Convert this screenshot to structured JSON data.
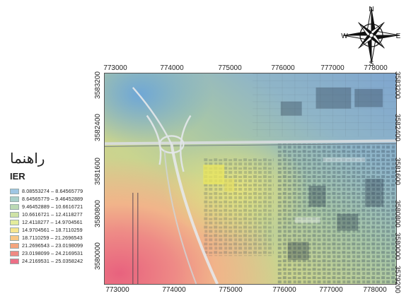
{
  "legend": {
    "title": "راهنما",
    "field": "IER",
    "items": [
      {
        "label": "8.08553274 – 8.64565779",
        "color": "#9fc6e3"
      },
      {
        "label": "8.64565779 – 9.46452889",
        "color": "#a8cfc9"
      },
      {
        "label": "9.46452889 – 10.6616721",
        "color": "#bbd9b4"
      },
      {
        "label": "10.6616721 – 12.4118277",
        "color": "#cfe2a6"
      },
      {
        "label": "12.4118277 – 14.9704561",
        "color": "#e3ec9c"
      },
      {
        "label": "14.9704561 – 18.7110259",
        "color": "#f6e58e"
      },
      {
        "label": "18.7110259 – 21.2696543",
        "color": "#f8c784"
      },
      {
        "label": "21.2696543 – 23.0198099",
        "color": "#f4a57e"
      },
      {
        "label": "23.0198099 – 24.2169531",
        "color": "#ef8a83"
      },
      {
        "label": "24.2169531 – 25.0358242",
        "color": "#ec6f86"
      }
    ]
  },
  "axes": {
    "top": [
      "773000",
      "774000",
      "775000",
      "776000",
      "777000",
      "778000"
    ],
    "bottom": [
      "773000",
      "774000",
      "775000",
      "776000",
      "777000",
      "778000"
    ],
    "left": [
      "3583200",
      "3582400",
      "3581600",
      "3580800",
      "3580000"
    ],
    "right": [
      "3583200",
      "3582400",
      "3581600",
      "3580800",
      "3580000",
      "3579200"
    ]
  },
  "compass": {
    "n": "N",
    "s": "S",
    "e": "E",
    "w": "W"
  }
}
